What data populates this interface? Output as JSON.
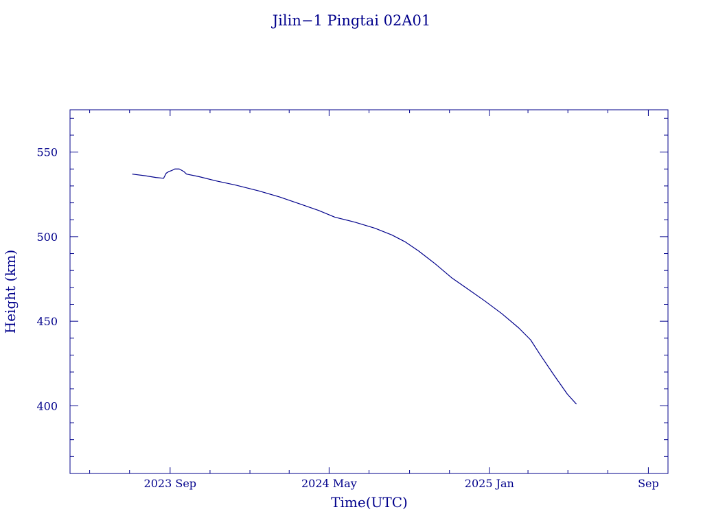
{
  "chart_data": {
    "type": "line",
    "title": "Jilin−1 Pingtai 02A01",
    "xlabel": "Time(UTC)",
    "ylabel": "Height (km)",
    "x_type": "date",
    "xlim": [
      "2023-04-01",
      "2025-10-01"
    ],
    "ylim": [
      360,
      575
    ],
    "x_ticks": [
      {
        "value": "2023-09-01",
        "label": "2023 Sep"
      },
      {
        "value": "2024-05-01",
        "label": "2024 May"
      },
      {
        "value": "2025-01-01",
        "label": "2025 Jan"
      },
      {
        "value": "2025-09-01",
        "label": "Sep"
      }
    ],
    "y_ticks": [
      400,
      450,
      500,
      550
    ],
    "grid": false,
    "color": "#00008b",
    "series": [
      {
        "name": "",
        "points": [
          {
            "x": "2023-07-05",
            "y": 537.0
          },
          {
            "x": "2023-07-25",
            "y": 536.0
          },
          {
            "x": "2023-08-10",
            "y": 535.0
          },
          {
            "x": "2023-08-22",
            "y": 534.5
          },
          {
            "x": "2023-08-26",
            "y": 537.5
          },
          {
            "x": "2023-08-30",
            "y": 538.5
          },
          {
            "x": "2023-09-03",
            "y": 539.0
          },
          {
            "x": "2023-09-08",
            "y": 540.0
          },
          {
            "x": "2023-09-15",
            "y": 540.0
          },
          {
            "x": "2023-09-22",
            "y": 538.5
          },
          {
            "x": "2023-09-26",
            "y": 537.0
          },
          {
            "x": "2023-10-15",
            "y": 535.5
          },
          {
            "x": "2023-11-10",
            "y": 533.0
          },
          {
            "x": "2023-12-10",
            "y": 530.5
          },
          {
            "x": "2024-01-15",
            "y": 527.0
          },
          {
            "x": "2024-02-15",
            "y": 523.5
          },
          {
            "x": "2024-03-20",
            "y": 519.0
          },
          {
            "x": "2024-04-15",
            "y": 515.5
          },
          {
            "x": "2024-05-10",
            "y": 511.5
          },
          {
            "x": "2024-06-10",
            "y": 508.5
          },
          {
            "x": "2024-07-10",
            "y": 505.0
          },
          {
            "x": "2024-08-05",
            "y": 501.0
          },
          {
            "x": "2024-08-25",
            "y": 497.0
          },
          {
            "x": "2024-09-15",
            "y": 491.5
          },
          {
            "x": "2024-10-10",
            "y": 484.0
          },
          {
            "x": "2024-11-05",
            "y": 475.5
          },
          {
            "x": "2024-12-01",
            "y": 468.5
          },
          {
            "x": "2024-12-25",
            "y": 462.0
          },
          {
            "x": "2025-01-20",
            "y": 454.5
          },
          {
            "x": "2025-02-15",
            "y": 446.0
          },
          {
            "x": "2025-03-05",
            "y": 439.0
          },
          {
            "x": "2025-03-20",
            "y": 430.0
          },
          {
            "x": "2025-04-10",
            "y": 418.0
          },
          {
            "x": "2025-04-30",
            "y": 407.0
          },
          {
            "x": "2025-05-14",
            "y": 401.0
          }
        ]
      }
    ]
  }
}
